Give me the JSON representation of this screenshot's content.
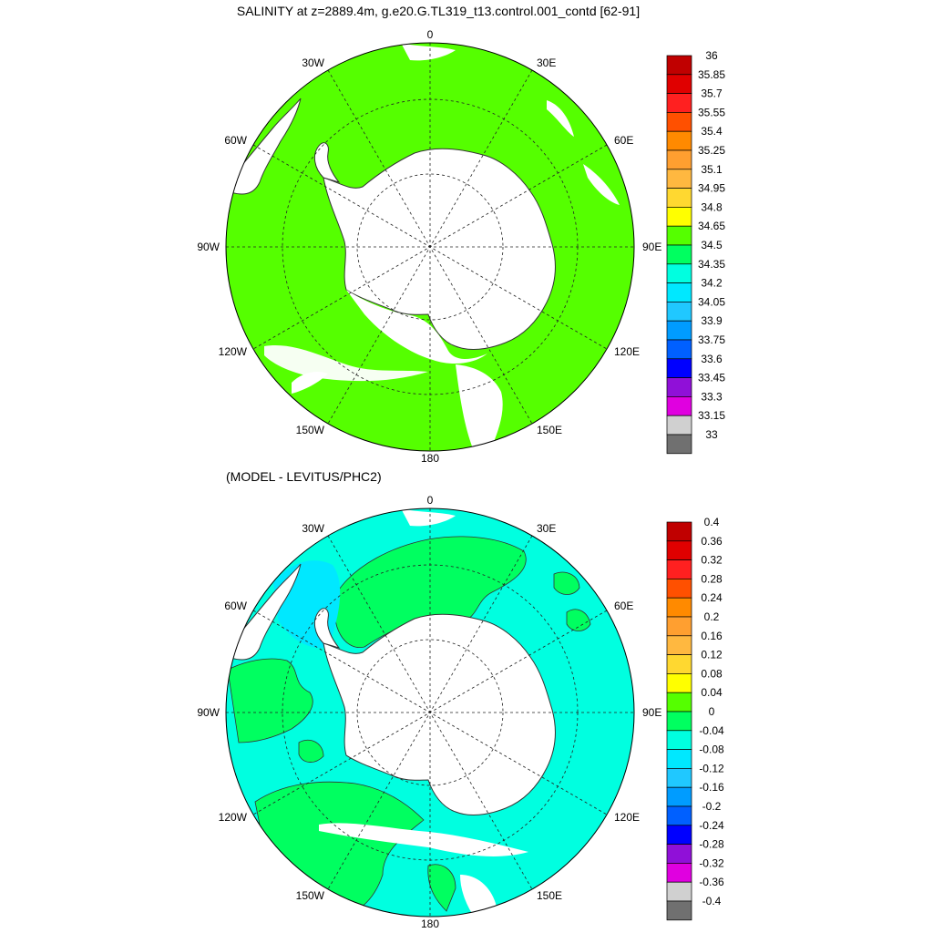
{
  "panel_top": {
    "title": "SALINITY at z=2889.4m, g.e20.G.TL319_t13.control.001_contd [62-91]",
    "colorbar": {
      "labels": [
        "36",
        "35.85",
        "35.7",
        "35.55",
        "35.4",
        "35.25",
        "35.1",
        "34.95",
        "34.8",
        "34.65",
        "34.5",
        "34.35",
        "34.2",
        "34.05",
        "33.9",
        "33.75",
        "33.6",
        "33.45",
        "33.3",
        "33.15",
        "33"
      ],
      "colors": [
        "#c00000",
        "#e00000",
        "#ff2020",
        "#ff5000",
        "#ff8a00",
        "#ff9f30",
        "#ffb840",
        "#ffd830",
        "#ffff00",
        "#55ff00",
        "#00ff60",
        "#00ffe0",
        "#00e8ff",
        "#20c8ff",
        "#009cff",
        "#0060ff",
        "#0000ff",
        "#9010d8",
        "#e000e0",
        "#d0d0d0",
        "#707070"
      ]
    }
  },
  "panel_bottom": {
    "title": "(MODEL - LEVITUS/PHC2)",
    "colorbar": {
      "labels": [
        "0.4",
        "0.36",
        "0.32",
        "0.28",
        "0.24",
        "0.2",
        "0.16",
        "0.12",
        "0.08",
        "0.04",
        "0",
        "-0.04",
        "-0.08",
        "-0.12",
        "-0.16",
        "-0.2",
        "-0.24",
        "-0.28",
        "-0.32",
        "-0.36",
        "-0.4"
      ],
      "colors": [
        "#c00000",
        "#e00000",
        "#ff2020",
        "#ff5000",
        "#ff8a00",
        "#ff9f30",
        "#ffb840",
        "#ffd830",
        "#ffff00",
        "#55ff00",
        "#00ff60",
        "#00ffe0",
        "#00e8ff",
        "#20c8ff",
        "#009cff",
        "#0060ff",
        "#0000ff",
        "#9010d8",
        "#e000e0",
        "#d0d0d0",
        "#707070"
      ]
    }
  },
  "lon_labels": {
    "top": "0",
    "bottom": "180",
    "left": "90W",
    "right": "90E",
    "upper_left": "30W",
    "upper_right": "30E",
    "mid_left": "60W",
    "mid_right": "60E",
    "lower_left": "120W",
    "lower_right": "120E",
    "bottom_left": "150W",
    "bottom_right": "150E"
  },
  "colors": {
    "salinity_fill": "#55ff00",
    "anomaly_fill": "#00ffe0",
    "anomaly_positive": "#00ff60",
    "anomaly_negative": "#00e8ff",
    "land": "#ffffff"
  }
}
